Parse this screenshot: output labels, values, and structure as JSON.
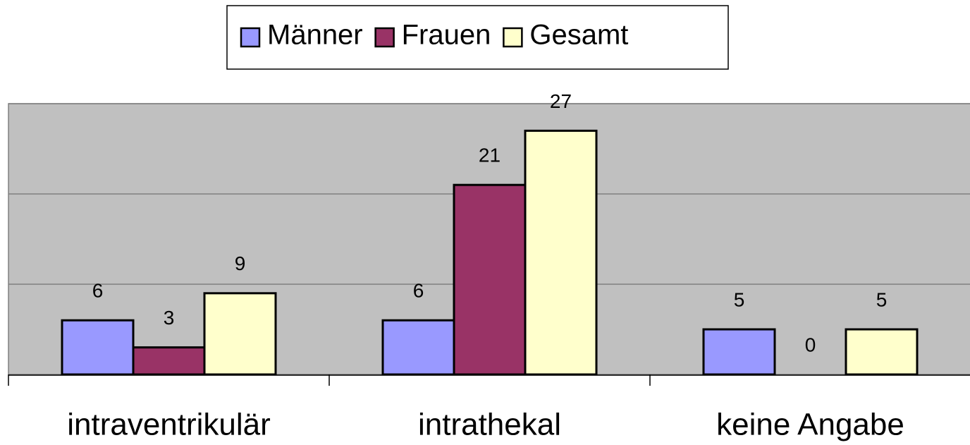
{
  "chart_data": {
    "type": "bar",
    "categories": [
      "intraventrikulär",
      "intrathekal",
      "keine Angabe"
    ],
    "series": [
      {
        "name": "Männer",
        "color": "#9999ff",
        "values": [
          6,
          6,
          5
        ]
      },
      {
        "name": "Frauen",
        "color": "#993366",
        "values": [
          3,
          21,
          0
        ]
      },
      {
        "name": "Gesamt",
        "color": "#ffffcc",
        "values": [
          9,
          27,
          5
        ]
      }
    ],
    "ylim": [
      0,
      30
    ],
    "yticks": [
      0,
      10,
      20,
      30
    ],
    "grid": true,
    "legend": "top"
  }
}
